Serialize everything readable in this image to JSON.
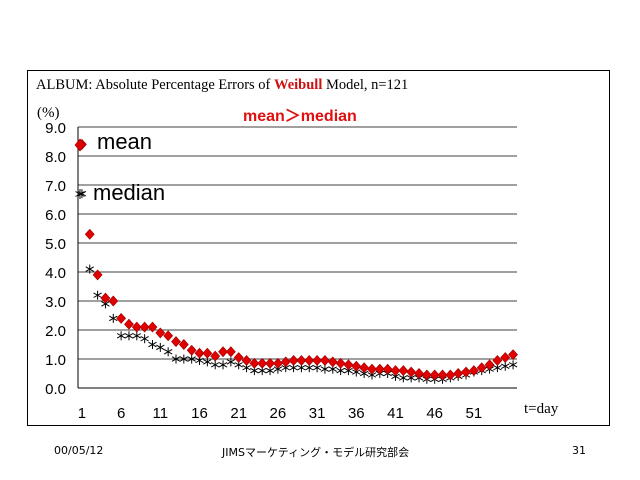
{
  "chart_data": {
    "type": "scatter",
    "title_prefix": "ALBUM: Absolute Percentage Errors of ",
    "title_highlight": "Weibull",
    "title_suffix": " Model, n=121",
    "title_highlight_color": "#d01010",
    "subtitle": "mean＞median",
    "subtitle_color": "#e01010",
    "ylabel": "(%)",
    "xlabel": "t=day",
    "ylim": [
      0,
      9
    ],
    "yticks": [
      "0.0",
      "1.0",
      "2.0",
      "3.0",
      "4.0",
      "5.0",
      "6.0",
      "7.0",
      "8.0",
      "9.0"
    ],
    "xticks": [
      1,
      6,
      11,
      16,
      21,
      26,
      31,
      36,
      41,
      46,
      51
    ],
    "xlim": [
      1,
      56
    ],
    "grid": true,
    "series": [
      {
        "name": "mean",
        "marker": "diamond",
        "color": "#e00000",
        "x": [
          1,
          2,
          3,
          4,
          5,
          6,
          7,
          8,
          9,
          10,
          11,
          12,
          13,
          14,
          15,
          16,
          17,
          18,
          19,
          20,
          21,
          22,
          23,
          24,
          25,
          26,
          27,
          28,
          29,
          30,
          31,
          32,
          33,
          34,
          35,
          36,
          37,
          38,
          39,
          40,
          41,
          42,
          43,
          44,
          45,
          46,
          47,
          48,
          49,
          50,
          51,
          52,
          53,
          54,
          55,
          56
        ],
        "values": [
          8.4,
          5.3,
          3.9,
          3.1,
          3.0,
          2.4,
          2.2,
          2.1,
          2.1,
          2.1,
          1.9,
          1.8,
          1.6,
          1.5,
          1.3,
          1.2,
          1.2,
          1.1,
          1.25,
          1.25,
          1.05,
          0.95,
          0.85,
          0.85,
          0.85,
          0.85,
          0.9,
          0.95,
          0.95,
          0.95,
          0.95,
          0.95,
          0.9,
          0.85,
          0.8,
          0.75,
          0.7,
          0.65,
          0.65,
          0.65,
          0.6,
          0.6,
          0.55,
          0.5,
          0.45,
          0.45,
          0.45,
          0.45,
          0.5,
          0.55,
          0.6,
          0.7,
          0.8,
          0.95,
          1.05,
          1.15
        ]
      },
      {
        "name": "median",
        "marker": "asterisk",
        "color": "#000000",
        "x": [
          1,
          2,
          3,
          4,
          5,
          6,
          7,
          8,
          9,
          10,
          11,
          12,
          13,
          14,
          15,
          16,
          17,
          18,
          19,
          20,
          21,
          22,
          23,
          24,
          25,
          26,
          27,
          28,
          29,
          30,
          31,
          32,
          33,
          34,
          35,
          36,
          37,
          38,
          39,
          40,
          41,
          42,
          43,
          44,
          45,
          46,
          47,
          48,
          49,
          50,
          51,
          52,
          53,
          54,
          55,
          56
        ],
        "values": [
          6.7,
          4.1,
          3.2,
          2.9,
          2.4,
          1.8,
          1.8,
          1.8,
          1.7,
          1.5,
          1.4,
          1.25,
          1.0,
          1.0,
          1.0,
          0.95,
          0.9,
          0.8,
          0.8,
          0.9,
          0.8,
          0.7,
          0.6,
          0.6,
          0.6,
          0.65,
          0.7,
          0.7,
          0.7,
          0.7,
          0.7,
          0.65,
          0.65,
          0.6,
          0.6,
          0.55,
          0.5,
          0.45,
          0.5,
          0.5,
          0.4,
          0.35,
          0.35,
          0.35,
          0.3,
          0.3,
          0.3,
          0.35,
          0.4,
          0.45,
          0.55,
          0.6,
          0.65,
          0.7,
          0.75,
          0.8
        ]
      }
    ]
  },
  "footer": {
    "date": "00/05/12",
    "org": "JIMSマーケティング・モデル研究部会",
    "page": "31"
  }
}
